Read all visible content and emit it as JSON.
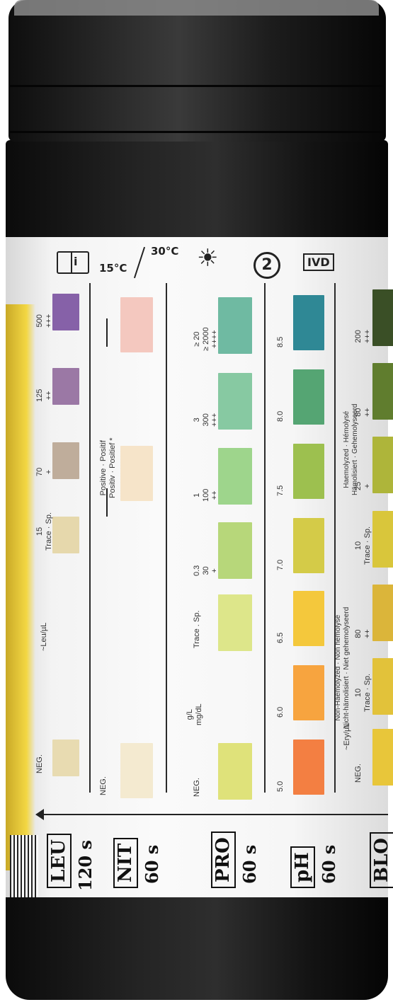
{
  "symbols": {
    "manual_icon": "info-book-icon",
    "temp_low": "15°C",
    "temp_high": "30°C",
    "sunlight_icon": "keep-away-from-sunlight-icon",
    "no_reuse_icon": "do-not-reuse-icon",
    "ivd": "IVD"
  },
  "tests": [
    {
      "code": "LEU",
      "time": "120 s",
      "unit_label": "~Leu/µL",
      "levels": [
        {
          "label": "NEG.",
          "color": "#e8dbb1"
        },
        {
          "label": "15\nTrace · Sp.",
          "color": "#e6d8ac"
        },
        {
          "label": "70\n+",
          "color": "#bfad9b"
        },
        {
          "label": "125\n++",
          "color": "#9b78a5"
        },
        {
          "label": "500\n+++",
          "color": "#8661a8"
        }
      ]
    },
    {
      "code": "NIT",
      "time": "60 s",
      "levels": [
        {
          "label": "NEG.",
          "color": "#f4ead0"
        },
        {
          "label": "Positive · Positif\nPositiv · Positief *",
          "color": "#f6e4c9"
        },
        {
          "label": "",
          "color": "#f4c8bf"
        }
      ]
    },
    {
      "code": "PRO",
      "time": "60 s",
      "unit_label": "g/L\nmg/dL",
      "levels": [
        {
          "label": "NEG.",
          "color": "#dfe27a"
        },
        {
          "label": "Trace . Sp.",
          "color": "#dde68a"
        },
        {
          "label": "0.3\n30\n+",
          "color": "#b7d77a"
        },
        {
          "label": "1\n100\n++",
          "color": "#9ed58c"
        },
        {
          "label": "3\n300\n+++",
          "color": "#87c9a2"
        },
        {
          "label": "≥ 20\n≥ 2000\n++++",
          "color": "#6fbaa2"
        }
      ]
    },
    {
      "code": "pH",
      "time": "60 s",
      "levels": [
        {
          "label": "5.0",
          "color": "#f37f42"
        },
        {
          "label": "6.0",
          "color": "#f7a43f"
        },
        {
          "label": "6.5",
          "color": "#f4c83c"
        },
        {
          "label": "7.0",
          "color": "#d4cb48"
        },
        {
          "label": "7.5",
          "color": "#9dc04f"
        },
        {
          "label": "8.0",
          "color": "#55a573"
        },
        {
          "label": "8.5",
          "color": "#2f8895"
        }
      ]
    },
    {
      "code": "BLO",
      "unit_label": "~Ery/µL",
      "nonhaem": "Non-Haemolyzed · Non hémolysé\nNicht-hämolisiert · Niet gehemolyseerd",
      "haem": "Haemolyzed · Hémolysé\nHämolisiert · Gehemolyseerd",
      "levels": [
        {
          "label": "NEG.",
          "color": "#e8c63a"
        },
        {
          "label": "10\nTrace · Sp.",
          "color": "#e2c23a"
        },
        {
          "label": "80\n++",
          "color": "#dbb53a"
        },
        {
          "label": "10\nTrace · Sp.",
          "color": "#d9c63b"
        },
        {
          "label": "25\n+",
          "color": "#aeb53a"
        },
        {
          "label": "80\n++",
          "color": "#607d2e"
        },
        {
          "label": "200\n+++",
          "color": "#3a4f26"
        }
      ]
    }
  ]
}
